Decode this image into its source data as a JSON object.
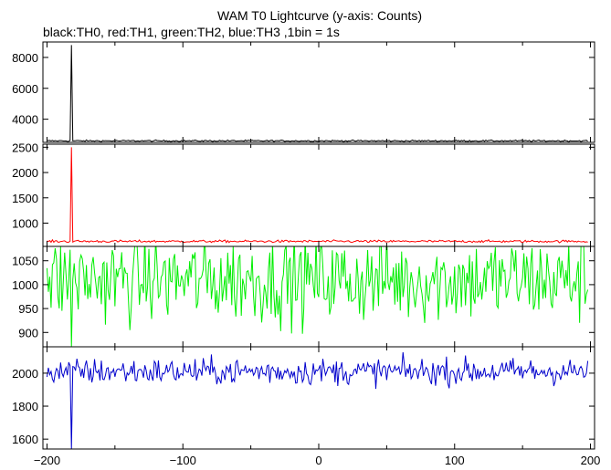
{
  "chart_data": [
    {
      "type": "line",
      "title": "WAM T0 Lightcurve (y-axis: Counts)",
      "subtitle": "black:TH0, red:TH1, green:TH2, blue:TH3 ,1bin = 1s",
      "series": [
        {
          "name": "TH0",
          "color": "#000000",
          "baseline": 2600,
          "noise": 25,
          "spike": {
            "x": -182,
            "peak": 8800
          }
        }
      ],
      "xlim": [
        -203,
        203
      ],
      "ylim": [
        2500,
        9000
      ],
      "yticks": [
        2000,
        4000,
        6000,
        8000
      ],
      "xticks": [
        -200,
        -100,
        0,
        100,
        200
      ],
      "grid": false
    },
    {
      "type": "line",
      "series": [
        {
          "name": "TH1",
          "color": "#ff0000",
          "baseline": 640,
          "noise": 12,
          "spike": {
            "x": -182,
            "peak": 2500
          }
        }
      ],
      "xlim": [
        -203,
        203
      ],
      "ylim": [
        540,
        2560
      ],
      "yticks": [
        1000,
        1500,
        2000,
        2500
      ],
      "grid": false
    },
    {
      "type": "line",
      "series": [
        {
          "name": "TH2",
          "color": "#00ee00",
          "baseline": 1010,
          "noise": 45,
          "dip": {
            "x": -182,
            "low": 870
          }
        }
      ],
      "xlim": [
        -203,
        203
      ],
      "ylim": [
        870,
        1080
      ],
      "yticks": [
        900,
        950,
        1000,
        1050
      ],
      "grid": false
    },
    {
      "type": "line",
      "series": [
        {
          "name": "TH3",
          "color": "#0000cc",
          "baseline": 2010,
          "noise": 40,
          "dip": {
            "x": -182,
            "low": 1540
          }
        }
      ],
      "xlim": [
        -203,
        203
      ],
      "ylim": [
        1540,
        2160
      ],
      "yticks": [
        1600,
        1800,
        2000
      ],
      "xticks": [
        -200,
        -100,
        0,
        100,
        200
      ],
      "grid": false
    }
  ]
}
